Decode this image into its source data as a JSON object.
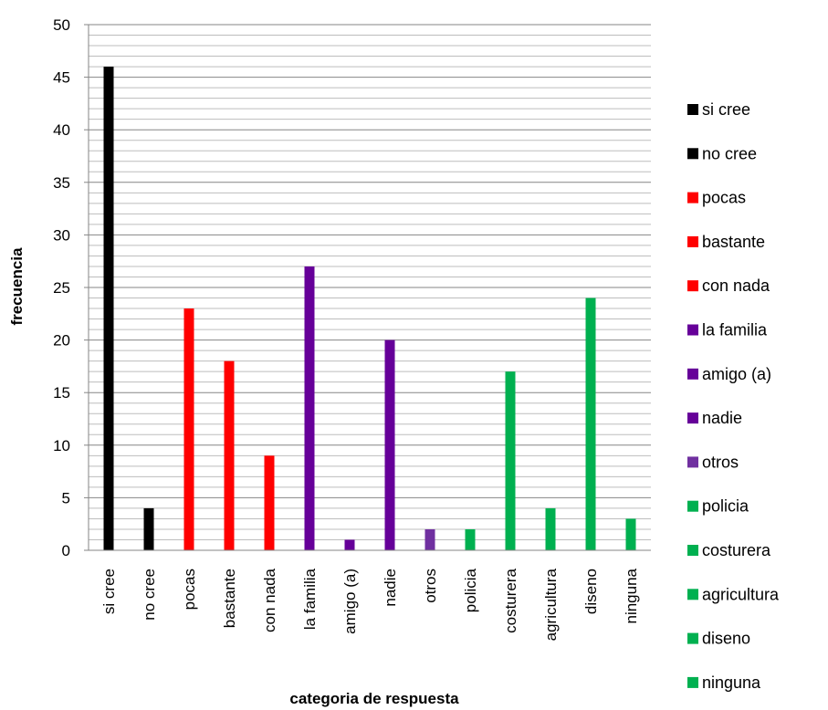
{
  "chart_data": {
    "type": "bar",
    "xlabel": "categoria de respuesta",
    "ylabel": "frecuencia",
    "ylim": [
      0,
      50
    ],
    "y_major_step": 5,
    "y_minor_step": 1,
    "grid": true,
    "legend_position": "right",
    "categories": [
      "si cree",
      "no cree",
      "pocas",
      "bastante",
      "con nada",
      "la familia",
      "amigo (a)",
      "nadie",
      "otros",
      "policia",
      "costurera",
      "agricultura",
      "diseno",
      "ninguna"
    ],
    "values": [
      46,
      4,
      23,
      18,
      9,
      27,
      1,
      20,
      2,
      2,
      17,
      4,
      24,
      3
    ],
    "colors": [
      "#000000",
      "#000000",
      "#ff0000",
      "#ff0000",
      "#ff0000",
      "#660099",
      "#660099",
      "#660099",
      "#7030a0",
      "#00b050",
      "#00b050",
      "#00b050",
      "#00b050",
      "#00b050"
    ],
    "y_ticks": [
      "0",
      "5",
      "10",
      "15",
      "20",
      "25",
      "30",
      "35",
      "40",
      "45",
      "50"
    ]
  }
}
